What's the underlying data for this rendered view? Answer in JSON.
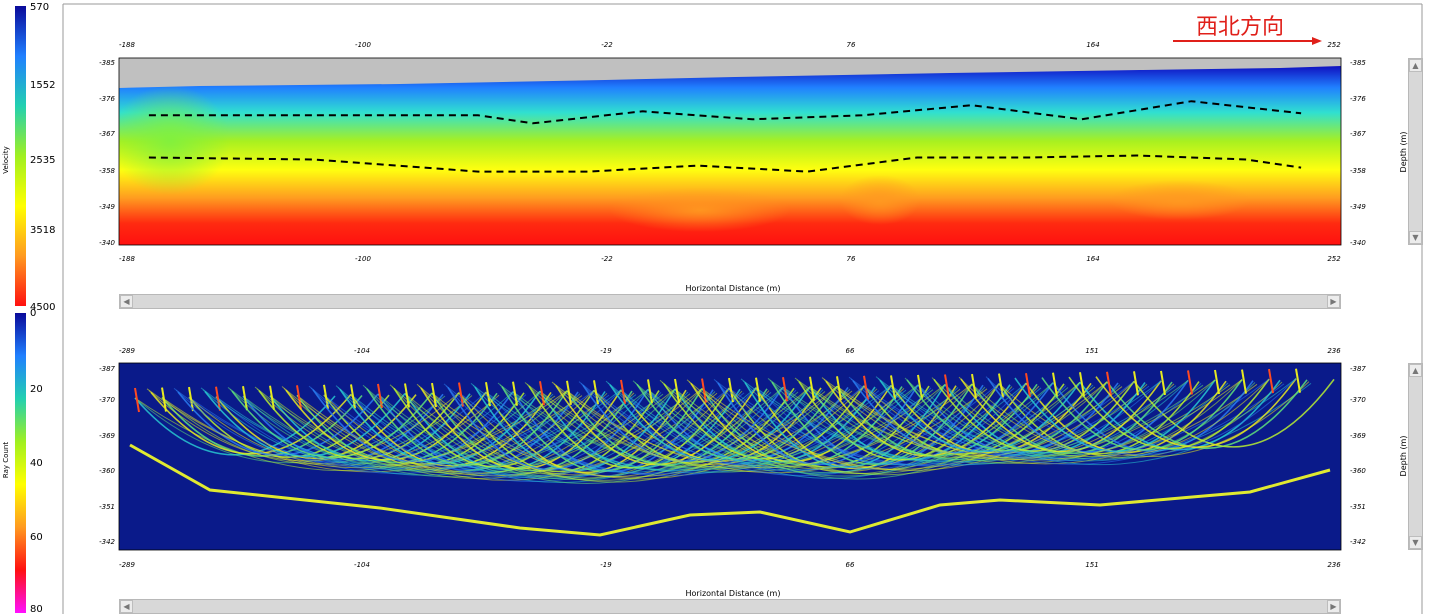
{
  "colorbars": {
    "velocity": {
      "title": "Velocity",
      "ticks": [
        "570",
        "1552",
        "2535",
        "3518",
        "4500"
      ],
      "values": [
        570,
        1552,
        2535,
        3518,
        4500
      ],
      "colors": [
        "#0a0a9a",
        "#2080ff",
        "#22d0b0",
        "#a0f020",
        "#ffff00",
        "#ff9a20",
        "#ff1010"
      ]
    },
    "raycount": {
      "title": "Ray Count",
      "ticks": [
        "0",
        "20",
        "40",
        "60",
        "80"
      ],
      "values": [
        0,
        20,
        40,
        60,
        80
      ],
      "colors": [
        "#0a0a9a",
        "#2080ff",
        "#22d0b0",
        "#a0f020",
        "#ffff00",
        "#ff9a20",
        "#ff1010",
        "#ff10ff"
      ]
    }
  },
  "annotation": {
    "text": "西北方向",
    "color": "#e0201a"
  },
  "chart_data": [
    {
      "type": "heatmap",
      "name": "velocity-model",
      "xlabel": "Horizontal Distance (m)",
      "ylabel": "Depth (m)",
      "x_ticks": [
        "-188",
        "-100",
        "-22",
        "76",
        "164",
        "252"
      ],
      "y_ticks": [
        "-385",
        "-376",
        "-367",
        "-358",
        "-349",
        "-340"
      ],
      "colorbar": "velocity",
      "interfaces": [
        {
          "x": [
            -180,
            -120,
            -60,
            -40,
            0,
            40,
            80,
            120,
            160,
            200,
            240
          ],
          "y": [
            -371.5,
            -371.5,
            -371.5,
            -369.5,
            -372.5,
            -370.5,
            -371.5,
            -374,
            -370.5,
            -375,
            -372
          ]
        },
        {
          "x": [
            -180,
            -120,
            -60,
            -20,
            20,
            60,
            100,
            140,
            180,
            220,
            240
          ],
          "y": [
            -361,
            -360.5,
            -357.5,
            -357.5,
            -359,
            -357.5,
            -361,
            -361,
            -361.5,
            -360.5,
            -358.5
          ]
        }
      ]
    },
    {
      "type": "heatmap",
      "name": "ray-coverage",
      "xlabel": "Horizontal Distance (m)",
      "ylabel": "Depth (m)",
      "x_ticks": [
        "-289",
        "-104",
        "-19",
        "66",
        "151",
        "236"
      ],
      "y_ticks": [
        "-387",
        "-370",
        "-369",
        "-360",
        "-351",
        "-342"
      ],
      "colorbar": "raycount"
    }
  ]
}
